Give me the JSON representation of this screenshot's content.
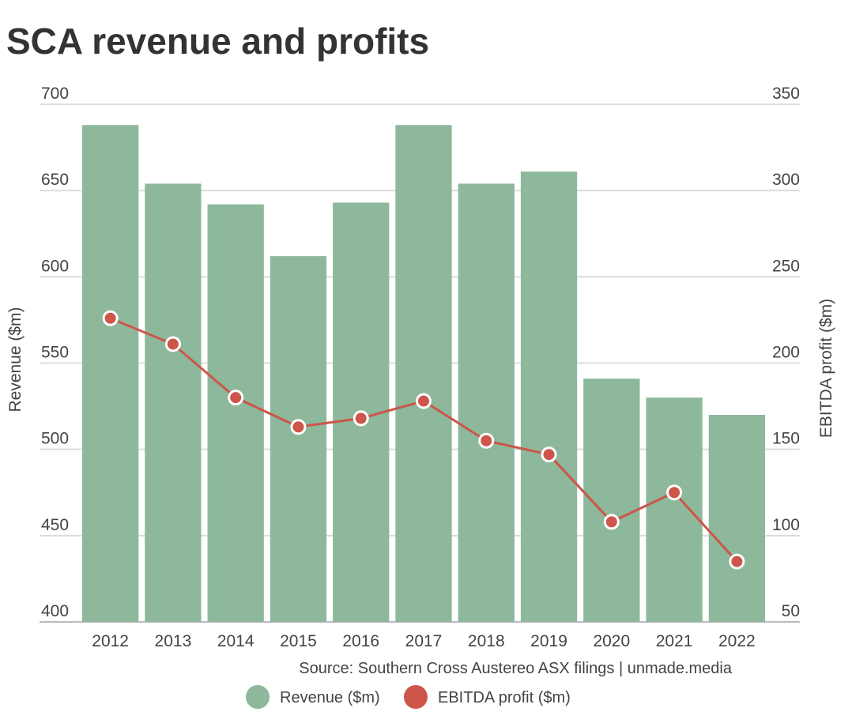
{
  "title": "SCA revenue and profits",
  "source": "Source: Southern Cross Austereo ASX filings | unmade.media",
  "chart_data": {
    "type": "bar+line",
    "title": "SCA revenue and profits",
    "categories": [
      "2012",
      "2013",
      "2014",
      "2015",
      "2016",
      "2017",
      "2018",
      "2019",
      "2020",
      "2021",
      "2022"
    ],
    "series": [
      {
        "name": "Revenue ($m)",
        "type": "bar",
        "axis": "left",
        "color": "#8db89b",
        "values": [
          688,
          654,
          642,
          612,
          643,
          688,
          654,
          661,
          541,
          530,
          520
        ]
      },
      {
        "name": "EBITDA profit ($m)",
        "type": "line",
        "axis": "right",
        "color": "#cd5549",
        "values": [
          226,
          211,
          180,
          163,
          168,
          178,
          155,
          147,
          108,
          125,
          85
        ]
      }
    ],
    "ylabel": "Revenue ($m)",
    "ylim": [
      400,
      700
    ],
    "yticks": [
      "700",
      "650",
      "600",
      "550",
      "500",
      "450",
      "400"
    ],
    "y2label": "EBITDA profit ($m)",
    "y2lim": [
      50,
      350
    ],
    "y2ticks": [
      "350",
      "300",
      "250",
      "200",
      "150",
      "100",
      "50"
    ],
    "grid": true,
    "legend": "bottom-center"
  }
}
